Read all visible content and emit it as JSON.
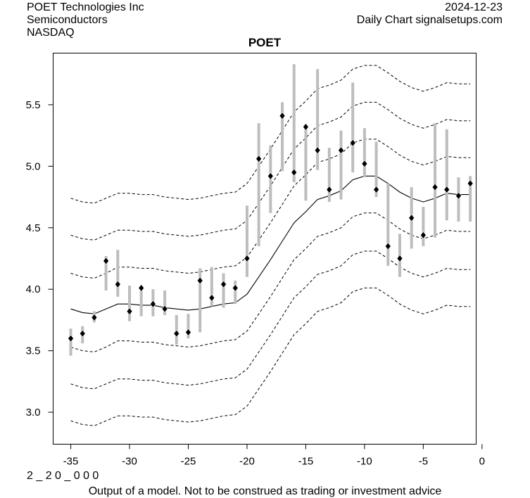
{
  "header": {
    "company": "POET Technologies Inc",
    "sector": "Semiconductors",
    "exchange": "NASDAQ",
    "date": "2024-12-23",
    "source": "Daily Chart signalsetups.com"
  },
  "footer": {
    "code": "2 _ 2 0 _ 0 0 0",
    "disclaimer": "Output of a model. Not to be construed as trading or investment advice"
  },
  "colors": {
    "bar": "#bdbdbd",
    "marker": "#000000",
    "line": "#000000"
  },
  "chart_data": {
    "type": "line",
    "title": "POET",
    "xlabel": "",
    "ylabel": "",
    "xlim": [
      -36.5,
      -0.5
    ],
    "ylim": [
      2.74,
      5.92
    ],
    "xticks": [
      -35,
      -30,
      -25,
      -20,
      -15,
      -10,
      -5,
      0
    ],
    "xtick_labels": [
      "-35",
      "-30",
      "-25",
      "-20",
      "-15",
      "-10",
      "-5",
      "0"
    ],
    "yticks": [
      3.0,
      3.5,
      4.0,
      4.5,
      5.0,
      5.5
    ],
    "ytick_labels": [
      "3.0",
      "3.5",
      "4.0",
      "4.5",
      "5.0",
      "5.5"
    ],
    "grid": false,
    "price_bars": [
      {
        "x": -35,
        "low": 3.46,
        "high": 3.68,
        "close": 3.6
      },
      {
        "x": -34,
        "low": 3.56,
        "high": 3.7,
        "close": 3.64
      },
      {
        "x": -33,
        "low": 3.73,
        "high": 3.82,
        "close": 3.77
      },
      {
        "x": -32,
        "low": 3.99,
        "high": 4.27,
        "close": 4.23
      },
      {
        "x": -31,
        "low": 3.94,
        "high": 4.32,
        "close": 4.04
      },
      {
        "x": -30,
        "low": 3.74,
        "high": 4.03,
        "close": 3.82
      },
      {
        "x": -29,
        "low": 3.78,
        "high": 4.03,
        "close": 4.01
      },
      {
        "x": -28,
        "low": 3.78,
        "high": 4.0,
        "close": 3.88
      },
      {
        "x": -27,
        "low": 3.79,
        "high": 3.99,
        "close": 3.84
      },
      {
        "x": -26,
        "low": 3.55,
        "high": 3.79,
        "close": 3.64
      },
      {
        "x": -25,
        "low": 3.6,
        "high": 3.8,
        "close": 3.65
      },
      {
        "x": -24,
        "low": 3.65,
        "high": 4.17,
        "close": 4.07
      },
      {
        "x": -23,
        "low": 3.86,
        "high": 4.18,
        "close": 3.93
      },
      {
        "x": -22,
        "low": 3.85,
        "high": 4.13,
        "close": 4.04
      },
      {
        "x": -21,
        "low": 3.88,
        "high": 4.07,
        "close": 4.01
      },
      {
        "x": -20,
        "low": 4.1,
        "high": 4.68,
        "close": 4.25
      },
      {
        "x": -19,
        "low": 4.35,
        "high": 5.35,
        "close": 5.06
      },
      {
        "x": -18,
        "low": 4.62,
        "high": 5.17,
        "close": 4.92
      },
      {
        "x": -17,
        "low": 4.96,
        "high": 5.52,
        "close": 5.41
      },
      {
        "x": -16,
        "low": 4.87,
        "high": 5.83,
        "close": 4.95
      },
      {
        "x": -15,
        "low": 4.72,
        "high": 5.34,
        "close": 5.32
      },
      {
        "x": -14,
        "low": 4.97,
        "high": 5.79,
        "close": 5.13
      },
      {
        "x": -13,
        "low": 4.71,
        "high": 5.15,
        "close": 4.81
      },
      {
        "x": -12,
        "low": 4.73,
        "high": 5.29,
        "close": 5.13
      },
      {
        "x": -11,
        "low": 4.95,
        "high": 5.68,
        "close": 5.19
      },
      {
        "x": -10,
        "low": 4.91,
        "high": 5.31,
        "close": 5.02
      },
      {
        "x": -9,
        "low": 4.75,
        "high": 5.2,
        "close": 4.81
      },
      {
        "x": -8,
        "low": 4.19,
        "high": 4.86,
        "close": 4.35
      },
      {
        "x": -7,
        "low": 4.1,
        "high": 4.45,
        "close": 4.25
      },
      {
        "x": -6,
        "low": 4.33,
        "high": 4.83,
        "close": 4.58
      },
      {
        "x": -5,
        "low": 4.35,
        "high": 4.67,
        "close": 4.44
      },
      {
        "x": -4,
        "low": 4.42,
        "high": 5.35,
        "close": 4.83
      },
      {
        "x": -3,
        "low": 4.56,
        "high": 5.3,
        "close": 4.81
      },
      {
        "x": -2,
        "low": 4.55,
        "high": 4.91,
        "close": 4.76
      },
      {
        "x": -1,
        "low": 4.55,
        "high": 4.92,
        "close": 4.86
      }
    ],
    "series": [
      {
        "name": "center",
        "style": "solid",
        "x": [
          -35,
          -34,
          -33,
          -32,
          -31,
          -30,
          -29,
          -28,
          -27,
          -26,
          -25,
          -24,
          -23,
          -22,
          -21,
          -20,
          -19,
          -18,
          -17,
          -16,
          -15,
          -14,
          -13,
          -12,
          -11,
          -10,
          -9,
          -8,
          -7,
          -6,
          -5,
          -4,
          -3,
          -2,
          -1
        ],
        "y": [
          3.84,
          3.81,
          3.8,
          3.84,
          3.88,
          3.88,
          3.87,
          3.87,
          3.85,
          3.84,
          3.83,
          3.84,
          3.86,
          3.88,
          3.89,
          3.96,
          4.1,
          4.24,
          4.39,
          4.54,
          4.63,
          4.73,
          4.76,
          4.8,
          4.89,
          4.92,
          4.92,
          4.86,
          4.79,
          4.74,
          4.71,
          4.74,
          4.78,
          4.77,
          4.77
        ]
      },
      {
        "name": "upper1",
        "style": "dashed",
        "x": [
          -35,
          -34,
          -33,
          -32,
          -31,
          -30,
          -29,
          -28,
          -27,
          -26,
          -25,
          -24,
          -23,
          -22,
          -21,
          -20,
          -19,
          -18,
          -17,
          -16,
          -15,
          -14,
          -13,
          -12,
          -11,
          -10,
          -9,
          -8,
          -7,
          -6,
          -5,
          -4,
          -3,
          -2,
          -1
        ],
        "y": [
          4.13,
          4.1,
          4.09,
          4.13,
          4.18,
          4.18,
          4.17,
          4.17,
          4.15,
          4.14,
          4.13,
          4.14,
          4.16,
          4.18,
          4.19,
          4.26,
          4.4,
          4.54,
          4.69,
          4.84,
          4.93,
          5.03,
          5.06,
          5.1,
          5.19,
          5.22,
          5.22,
          5.16,
          5.09,
          5.04,
          5.01,
          5.04,
          5.08,
          5.07,
          5.07
        ]
      },
      {
        "name": "upper2",
        "style": "dashed",
        "x": [
          -35,
          -34,
          -33,
          -32,
          -31,
          -30,
          -29,
          -28,
          -27,
          -26,
          -25,
          -24,
          -23,
          -22,
          -21,
          -20,
          -19,
          -18,
          -17,
          -16,
          -15,
          -14,
          -13,
          -12,
          -11,
          -10,
          -9,
          -8,
          -7,
          -6,
          -5,
          -4,
          -3,
          -2,
          -1
        ],
        "y": [
          4.44,
          4.41,
          4.4,
          4.44,
          4.48,
          4.48,
          4.47,
          4.47,
          4.45,
          4.44,
          4.43,
          4.44,
          4.46,
          4.48,
          4.49,
          4.56,
          4.7,
          4.84,
          4.99,
          5.14,
          5.23,
          5.33,
          5.36,
          5.4,
          5.49,
          5.52,
          5.52,
          5.46,
          5.39,
          5.34,
          5.31,
          5.34,
          5.38,
          5.37,
          5.37
        ]
      },
      {
        "name": "upper3",
        "style": "dashed",
        "x": [
          -35,
          -34,
          -33,
          -32,
          -31,
          -30,
          -29,
          -28,
          -27,
          -26,
          -25,
          -24,
          -23,
          -22,
          -21,
          -20,
          -19,
          -18,
          -17,
          -16,
          -15,
          -14,
          -13,
          -12,
          -11,
          -10,
          -9,
          -8,
          -7,
          -6,
          -5,
          -4,
          -3,
          -2,
          -1
        ],
        "y": [
          4.74,
          4.71,
          4.7,
          4.74,
          4.78,
          4.78,
          4.77,
          4.77,
          4.75,
          4.74,
          4.73,
          4.74,
          4.76,
          4.78,
          4.79,
          4.86,
          5.0,
          5.14,
          5.29,
          5.44,
          5.53,
          5.63,
          5.66,
          5.7,
          5.79,
          5.82,
          5.82,
          5.76,
          5.69,
          5.64,
          5.61,
          5.64,
          5.68,
          5.67,
          5.67
        ]
      },
      {
        "name": "lower1",
        "style": "dashed",
        "x": [
          -35,
          -34,
          -33,
          -32,
          -31,
          -30,
          -29,
          -28,
          -27,
          -26,
          -25,
          -24,
          -23,
          -22,
          -21,
          -20,
          -19,
          -18,
          -17,
          -16,
          -15,
          -14,
          -13,
          -12,
          -11,
          -10,
          -9,
          -8,
          -7,
          -6,
          -5,
          -4,
          -3,
          -2,
          -1
        ],
        "y": [
          3.53,
          3.5,
          3.49,
          3.53,
          3.58,
          3.58,
          3.57,
          3.57,
          3.55,
          3.54,
          3.53,
          3.54,
          3.56,
          3.58,
          3.59,
          3.66,
          3.8,
          3.94,
          4.09,
          4.24,
          4.33,
          4.43,
          4.46,
          4.5,
          4.59,
          4.62,
          4.62,
          4.56,
          4.49,
          4.44,
          4.41,
          4.44,
          4.48,
          4.47,
          4.47
        ]
      },
      {
        "name": "lower2",
        "style": "dashed",
        "x": [
          -35,
          -34,
          -33,
          -32,
          -31,
          -30,
          -29,
          -28,
          -27,
          -26,
          -25,
          -24,
          -23,
          -22,
          -21,
          -20,
          -19,
          -18,
          -17,
          -16,
          -15,
          -14,
          -13,
          -12,
          -11,
          -10,
          -9,
          -8,
          -7,
          -6,
          -5,
          -4,
          -3,
          -2,
          -1
        ],
        "y": [
          3.23,
          3.2,
          3.19,
          3.23,
          3.27,
          3.27,
          3.26,
          3.26,
          3.24,
          3.23,
          3.22,
          3.23,
          3.25,
          3.27,
          3.28,
          3.35,
          3.49,
          3.63,
          3.78,
          3.93,
          4.02,
          4.12,
          4.15,
          4.19,
          4.28,
          4.31,
          4.31,
          4.25,
          4.18,
          4.13,
          4.1,
          4.13,
          4.17,
          4.16,
          4.16
        ]
      },
      {
        "name": "lower3",
        "style": "dashed",
        "x": [
          -35,
          -34,
          -33,
          -32,
          -31,
          -30,
          -29,
          -28,
          -27,
          -26,
          -25,
          -24,
          -23,
          -22,
          -21,
          -20,
          -19,
          -18,
          -17,
          -16,
          -15,
          -14,
          -13,
          -12,
          -11,
          -10,
          -9,
          -8,
          -7,
          -6,
          -5,
          -4,
          -3,
          -2,
          -1
        ],
        "y": [
          2.93,
          2.9,
          2.89,
          2.93,
          2.97,
          2.97,
          2.96,
          2.96,
          2.94,
          2.93,
          2.92,
          2.93,
          2.95,
          2.97,
          2.98,
          3.05,
          3.19,
          3.33,
          3.48,
          3.63,
          3.72,
          3.82,
          3.85,
          3.89,
          3.98,
          4.01,
          4.01,
          3.95,
          3.88,
          3.83,
          3.8,
          3.83,
          3.87,
          3.86,
          3.86
        ]
      }
    ]
  }
}
